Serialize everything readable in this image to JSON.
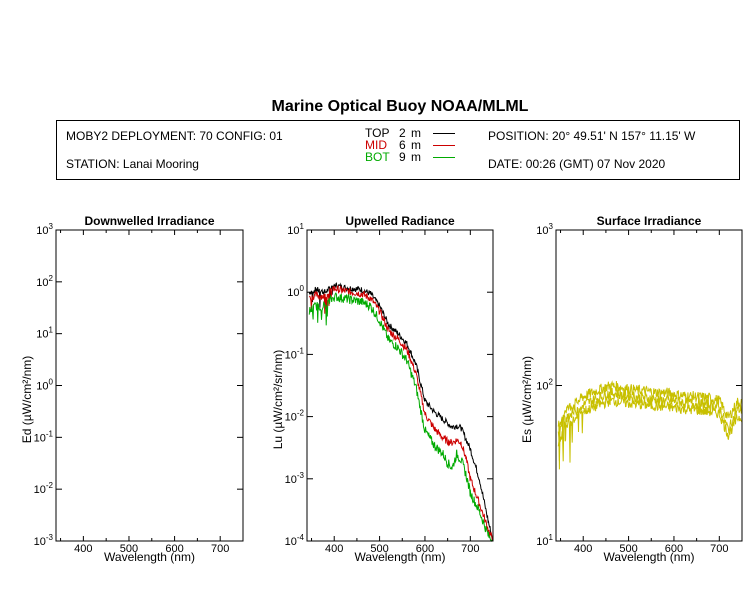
{
  "title": "Marine Optical Buoy NOAA/MLML",
  "info": {
    "deployment": "MOBY2 DEPLOYMENT: 70 CONFIG: 01",
    "station": "STATION: Lanai Mooring",
    "position": "POSITION: 20° 49.51' N   157° 11.15' W",
    "date": "DATE: 00:26 (GMT) 07 Nov 2020"
  },
  "legend": [
    {
      "label": "TOP",
      "depth": "2",
      "unit": "m",
      "color": "#000000"
    },
    {
      "label": "MID",
      "depth": "6",
      "unit": "m",
      "color": "#cc0000"
    },
    {
      "label": "BOT",
      "depth": "9",
      "unit": "m",
      "color": "#00aa00"
    }
  ],
  "chart_data": [
    {
      "type": "line",
      "title": "Downwelled Irradiance",
      "xlabel": "Wavelength (nm)",
      "ylabel": "Ed  (µW/cm²/nm)",
      "xlim": [
        340,
        750
      ],
      "ylim": [
        0.001,
        1000
      ],
      "yscale": "log",
      "xticks": [
        400,
        500,
        600,
        700
      ],
      "ytick_exponents": [
        -3,
        -2,
        -1,
        0,
        1,
        2,
        3
      ],
      "series": []
    },
    {
      "type": "line",
      "title": "Upwelled Radiance",
      "xlabel": "Wavelength (nm)",
      "ylabel": "Lu  (µW/cm²/sr/nm)",
      "xlim": [
        340,
        750
      ],
      "ylim": [
        0.0001,
        10
      ],
      "yscale": "log",
      "xticks": [
        400,
        500,
        600,
        700
      ],
      "ytick_exponents": [
        -4,
        -3,
        -2,
        -1,
        0,
        1
      ],
      "series": [
        {
          "name": "TOP",
          "color": "#000000",
          "noise": 0.1,
          "x": [
            345,
            360,
            380,
            400,
            420,
            440,
            460,
            480,
            500,
            520,
            540,
            560,
            580,
            600,
            620,
            640,
            660,
            670,
            680,
            700,
            720,
            740,
            750
          ],
          "y": [
            1.0,
            1.1,
            1.0,
            1.3,
            1.2,
            1.15,
            1.1,
            0.95,
            0.6,
            0.3,
            0.22,
            0.15,
            0.07,
            0.018,
            0.012,
            0.009,
            0.0068,
            0.0072,
            0.0065,
            0.003,
            0.001,
            0.0002,
            0.0001
          ]
        },
        {
          "name": "MID",
          "color": "#cc0000",
          "noise": 0.12,
          "x": [
            345,
            360,
            380,
            400,
            420,
            440,
            460,
            480,
            500,
            520,
            540,
            560,
            580,
            600,
            620,
            640,
            650,
            660,
            670,
            680,
            690,
            700,
            720,
            740,
            750
          ],
          "y": [
            0.8,
            0.9,
            0.85,
            1.15,
            1.05,
            1.0,
            0.95,
            0.8,
            0.5,
            0.24,
            0.18,
            0.12,
            0.05,
            0.011,
            0.0065,
            0.0045,
            0.004,
            0.0038,
            0.0042,
            0.0038,
            0.0022,
            0.001,
            0.0004,
            0.00015,
            0.0001
          ]
        },
        {
          "name": "BOT",
          "color": "#00aa00",
          "noise": 0.15,
          "x": [
            345,
            360,
            380,
            400,
            420,
            440,
            460,
            480,
            500,
            520,
            540,
            560,
            580,
            600,
            620,
            640,
            650,
            660,
            670,
            680,
            690,
            700,
            720,
            740,
            750
          ],
          "y": [
            0.5,
            0.6,
            0.6,
            0.85,
            0.8,
            0.75,
            0.7,
            0.6,
            0.35,
            0.17,
            0.13,
            0.08,
            0.03,
            0.006,
            0.0035,
            0.0025,
            0.0018,
            0.0015,
            0.0025,
            0.002,
            0.0012,
            0.0006,
            0.0003,
            0.00012,
            0.0001
          ]
        }
      ]
    },
    {
      "type": "line",
      "title": "Surface Irradiance",
      "xlabel": "Wavelength (nm)",
      "ylabel": "Es  (µW/cm²/nm)",
      "xlim": [
        340,
        750
      ],
      "ylim": [
        10,
        1000
      ],
      "yscale": "log",
      "xticks": [
        400,
        500,
        600,
        700
      ],
      "ytick_exponents": [
        1,
        2,
        3
      ],
      "series": [
        {
          "color": "#c8c000",
          "noise": 0.07,
          "x": [
            345,
            360,
            380,
            400,
            420,
            440,
            460,
            480,
            500,
            520,
            540,
            560,
            580,
            600,
            620,
            640,
            660,
            680,
            700,
            720,
            740,
            750
          ],
          "y": [
            55,
            70,
            75,
            85,
            90,
            95,
            100,
            98,
            95,
            93,
            92,
            90,
            90,
            88,
            86,
            85,
            84,
            83,
            80,
            62,
            78,
            78
          ]
        },
        {
          "color": "#c8c000",
          "noise": 0.07,
          "x": [
            345,
            360,
            380,
            400,
            420,
            440,
            460,
            480,
            500,
            520,
            540,
            560,
            580,
            600,
            620,
            640,
            660,
            680,
            700,
            720,
            740,
            750
          ],
          "y": [
            48,
            62,
            68,
            75,
            80,
            85,
            90,
            88,
            86,
            84,
            83,
            81,
            80,
            79,
            78,
            77,
            76,
            75,
            72,
            52,
            70,
            70
          ]
        },
        {
          "color": "#c8c000",
          "noise": 0.07,
          "x": [
            345,
            360,
            380,
            400,
            420,
            440,
            460,
            480,
            500,
            520,
            540,
            560,
            580,
            600,
            620,
            640,
            660,
            680,
            700,
            720,
            740,
            750
          ],
          "y": [
            42,
            55,
            60,
            68,
            72,
            76,
            80,
            79,
            77,
            76,
            75,
            74,
            73,
            72,
            71,
            70,
            69,
            68,
            66,
            48,
            62,
            63
          ]
        }
      ]
    }
  ]
}
